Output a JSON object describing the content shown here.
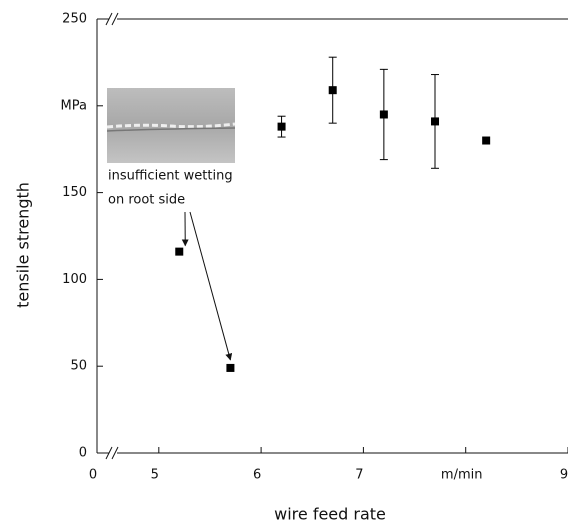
{
  "chart_data": {
    "type": "scatter",
    "x_label": "wire feed rate",
    "y_label": "tensile strength",
    "x": [
      5.2,
      5.7,
      6.2,
      6.7,
      7.2,
      7.7,
      8.2
    ],
    "values": [
      116,
      49,
      188,
      209,
      195,
      191,
      180
    ],
    "errors": [
      null,
      null,
      6,
      19,
      26,
      27,
      null
    ],
    "color": "#000000",
    "xlim": [
      4.65,
      9
    ],
    "ylim": [
      0,
      250
    ],
    "xticks": [
      0,
      5,
      6,
      7,
      {
        "value": 8,
        "label": "m/min"
      },
      9
    ],
    "yticks": [
      0,
      50,
      100,
      150,
      {
        "value": 200,
        "label": "MPa"
      },
      250
    ],
    "axis_break": true,
    "annotation": [
      "insufficient wetting",
      "on root side"
    ]
  }
}
